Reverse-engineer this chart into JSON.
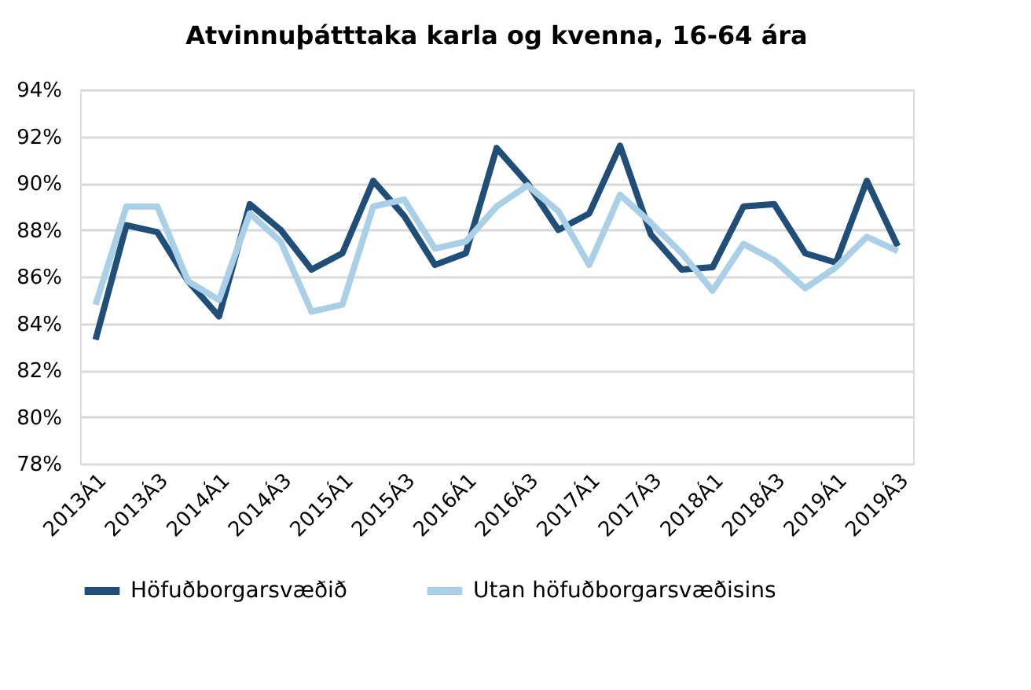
{
  "chart_data": {
    "type": "line",
    "title": "Atvinnuþátttaka karla og kvenna, 16-64 ára",
    "categories": [
      "2013Á1",
      null,
      "2013Á3",
      null,
      "2014Á1",
      null,
      "2014Á3",
      null,
      "2015Á1",
      null,
      "2015Á3",
      null,
      "2016Á1",
      null,
      "2016Á3",
      null,
      "2017Á1",
      null,
      "2017Á3",
      null,
      "2018Á1",
      null,
      "2018Á3",
      null,
      "2019Á1",
      null,
      "2019Á3"
    ],
    "series": [
      {
        "name": "Höfuðborgarsvæðið",
        "color": "#1f4e79",
        "values": [
          83.3,
          88.2,
          87.9,
          85.8,
          84.3,
          89.1,
          88.0,
          86.3,
          87.0,
          90.1,
          88.6,
          86.5,
          87.0,
          91.5,
          90.0,
          88.0,
          88.7,
          91.6,
          87.8,
          86.3,
          86.4,
          89.0,
          89.1,
          87.0,
          86.6,
          90.1,
          87.3
        ]
      },
      {
        "name": "Utan höfuðborgarsvæðisins",
        "color": "#a9d0e6",
        "values": [
          84.8,
          89.0,
          89.0,
          85.8,
          85.0,
          88.7,
          87.5,
          84.5,
          84.8,
          89.0,
          89.3,
          87.2,
          87.5,
          89.0,
          89.9,
          88.8,
          86.5,
          89.5,
          88.3,
          87.0,
          85.4,
          87.4,
          86.7,
          85.5,
          86.4,
          87.7,
          87.1
        ]
      }
    ],
    "ylim": [
      78,
      94
    ],
    "yticks": [
      {
        "value": 78,
        "label": "78%"
      },
      {
        "value": 80,
        "label": "80%"
      },
      {
        "value": 82,
        "label": "82%"
      },
      {
        "value": 84,
        "label": "84%"
      },
      {
        "value": 86,
        "label": "86%"
      },
      {
        "value": 88,
        "label": "88%"
      },
      {
        "value": 90,
        "label": "90%"
      },
      {
        "value": 92,
        "label": "92%"
      },
      {
        "value": 94,
        "label": "94%"
      }
    ],
    "grid": "y",
    "legend": "bottom",
    "marker": "none",
    "line_style": "solid"
  }
}
